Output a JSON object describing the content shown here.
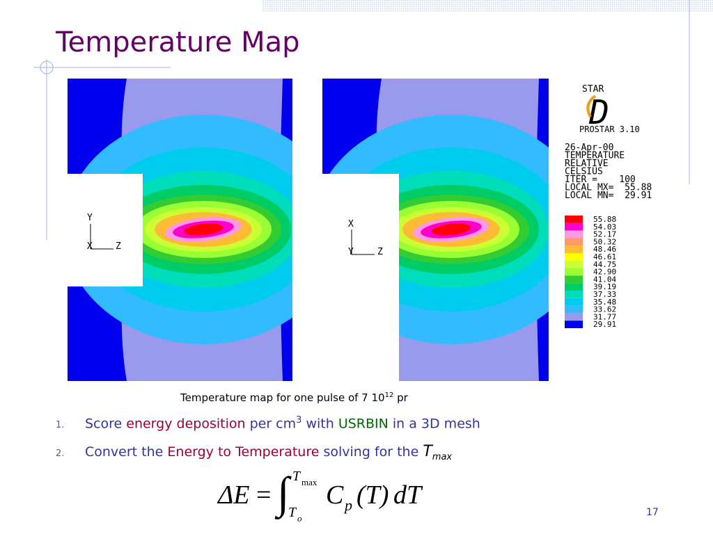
{
  "header": {
    "title": "Temperature Map"
  },
  "figure": {
    "left_axes": [
      "Y",
      "X",
      "Z"
    ],
    "right_axes": [
      "X",
      "Y",
      "Z"
    ],
    "logo": {
      "name": "STAR",
      "letter": "D",
      "version": "PROSTAR 3.10"
    },
    "info": [
      "26-Apr-00",
      "TEMPERATURE",
      "RELATIVE",
      "CELSIUS",
      "ITER =    100",
      "LOCAL MX=  55.88",
      "LOCAL MN=  29.91"
    ],
    "legend": [
      {
        "label": "55.88",
        "color": "#ff0000"
      },
      {
        "label": "54.03",
        "color": "#ff00cc"
      },
      {
        "label": "52.17",
        "color": "#ff99e6"
      },
      {
        "label": "50.32",
        "color": "#ff9966"
      },
      {
        "label": "48.46",
        "color": "#ffbb33"
      },
      {
        "label": "46.61",
        "color": "#ffff00"
      },
      {
        "label": "44.75",
        "color": "#ccff33"
      },
      {
        "label": "42.90",
        "color": "#99ff33"
      },
      {
        "label": "41.04",
        "color": "#33cc33"
      },
      {
        "label": "39.19",
        "color": "#00cc66"
      },
      {
        "label": "37.33",
        "color": "#00ddbb"
      },
      {
        "label": "35.48",
        "color": "#00ccee"
      },
      {
        "label": "33.62",
        "color": "#33bbff"
      },
      {
        "label": "31.77",
        "color": "#9999ee"
      },
      {
        "label": "29.91",
        "color": "#0000ee"
      }
    ],
    "caption": {
      "text": "Temperature map for one pulse of 7 10",
      "sup": "12",
      "tail": " pr"
    }
  },
  "list": [
    {
      "number": "1.",
      "parts": [
        {
          "text": "Score ",
          "color": "#333399"
        },
        {
          "text": "energy deposition",
          "color": "#990033"
        },
        {
          "text": " per cm",
          "color": "#333399"
        },
        {
          "text": "3",
          "color": "#333399",
          "sup": true
        },
        {
          "text": " with ",
          "color": "#333399"
        },
        {
          "text": "USRBIN",
          "color": "#006600"
        },
        {
          "text": " in a 3D mesh",
          "color": "#333399"
        }
      ]
    },
    {
      "number": "2.",
      "parts": [
        {
          "text": "Convert the ",
          "color": "#333399"
        },
        {
          "text": "Energy to Temperature",
          "color": "#990033"
        },
        {
          "text": " solving for the ",
          "color": "#333399"
        },
        {
          "text": "T",
          "color": "#000000",
          "italic": true
        },
        {
          "text": "max",
          "color": "#000000",
          "italic": true,
          "sub": true
        }
      ]
    }
  ],
  "equation": {
    "lhs": "ΔE",
    "equals": "=",
    "integral": "∫",
    "upper": "T",
    "upper_sub": "max",
    "lower": "T",
    "lower_sub": "o",
    "c": "C",
    "c_sub": "p",
    "arg": "(T)",
    "d": "dT"
  },
  "page_number": "17"
}
